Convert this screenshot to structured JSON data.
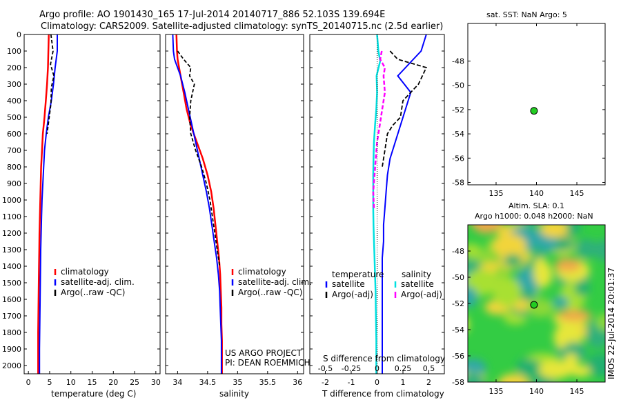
{
  "header": {
    "line1": "Argo profile: AO 1901430_165 17-Jul-2014 20140717_886 52.103S 139.694E",
    "line2": "Climatology: CARS2009. Satellite-adjusted climatology: synTS_20140715.nc (2.5d earlier)"
  },
  "credits": {
    "project": "US ARGO PROJECT",
    "pi": "PI: DEAN ROEMMICH",
    "stamp": "IMOS 22-Jul-2014 20:01:37"
  },
  "colors": {
    "climatology": "#ff0000",
    "satellite": "#0000ff",
    "argo": "#000000",
    "salinity_sat": "#00e0e0",
    "salinity_argo": "#ff00ff",
    "dot": "#22cc22"
  },
  "chart_data": [
    {
      "id": "temperature",
      "type": "line",
      "xlabel": "temperature (deg C)",
      "xlim": [
        -1,
        31
      ],
      "ylim": [
        2050,
        0
      ],
      "xticks": [
        "0",
        "5",
        "10",
        "15",
        "20",
        "25",
        "30"
      ],
      "yticks": [
        "0",
        "100",
        "200",
        "300",
        "400",
        "500",
        "600",
        "700",
        "800",
        "900",
        "1000",
        "1100",
        "1200",
        "1300",
        "1400",
        "1500",
        "1600",
        "1700",
        "1800",
        "1900",
        "2000"
      ],
      "legend": [
        "climatology",
        "satellite-adj. clim.",
        "Argo(..raw -QC)"
      ],
      "series": [
        {
          "name": "climatology",
          "x": [
            4.8,
            4.7,
            4.6,
            4.4,
            4.1,
            3.8,
            3.4,
            3.2,
            3.0,
            2.9,
            2.8,
            2.7,
            2.6,
            2.55,
            2.5,
            2.45,
            2.4,
            2.35,
            2.3,
            2.3,
            2.3
          ],
          "y": [
            0,
            100,
            200,
            300,
            400,
            500,
            600,
            700,
            800,
            900,
            1000,
            1100,
            1200,
            1300,
            1400,
            1500,
            1600,
            1700,
            1800,
            1900,
            2050
          ]
        },
        {
          "name": "satellite-adj. clim.",
          "x": [
            6.8,
            6.8,
            6.3,
            5.9,
            5.4,
            4.7,
            4.2,
            3.8,
            3.6,
            3.4,
            3.2,
            3.1,
            3.0,
            2.9,
            2.85,
            2.8,
            2.75,
            2.7,
            2.65,
            2.6,
            2.6
          ],
          "y": [
            0,
            100,
            200,
            300,
            400,
            500,
            600,
            700,
            800,
            900,
            1000,
            1100,
            1200,
            1300,
            1400,
            1500,
            1600,
            1700,
            1800,
            1900,
            2050
          ]
        },
        {
          "name": "Argo(..raw -QC)",
          "x": [
            5.3,
            5.8,
            5.2,
            6.0,
            5.4,
            5.3,
            4.8,
            4.4
          ],
          "y": [
            0,
            100,
            180,
            250,
            320,
            420,
            520,
            600
          ]
        }
      ]
    },
    {
      "id": "salinity",
      "type": "line",
      "xlabel": "salinity",
      "xlim": [
        33.8,
        36.1
      ],
      "ylim": [
        2050,
        0
      ],
      "xticks": [
        "34",
        "34.5",
        "35",
        "35.5",
        "36"
      ],
      "legend": [
        "climatology",
        "satellite-adj. clim.",
        "Argo(..raw -QC)"
      ],
      "series": [
        {
          "name": "climatology",
          "x": [
            33.98,
            33.99,
            34.0,
            34.05,
            34.1,
            34.15,
            34.22,
            34.32,
            34.42,
            34.5,
            34.56,
            34.6,
            34.63,
            34.66,
            34.69,
            34.71,
            34.72,
            34.73,
            34.73,
            34.74,
            34.74
          ],
          "y": [
            0,
            100,
            150,
            250,
            350,
            450,
            550,
            650,
            750,
            850,
            950,
            1050,
            1150,
            1250,
            1350,
            1450,
            1550,
            1650,
            1750,
            1850,
            2050
          ]
        },
        {
          "name": "satellite-adj. clim.",
          "x": [
            33.92,
            33.93,
            33.95,
            34.05,
            34.12,
            34.18,
            34.24,
            34.3,
            34.36,
            34.42,
            34.48,
            34.53,
            34.57,
            34.61,
            34.65,
            34.68,
            34.7,
            34.71,
            34.72,
            34.73,
            34.73
          ],
          "y": [
            0,
            100,
            150,
            250,
            350,
            450,
            550,
            650,
            750,
            850,
            950,
            1050,
            1150,
            1250,
            1350,
            1450,
            1550,
            1650,
            1750,
            1850,
            2050
          ]
        },
        {
          "name": "Argo(..raw -QC)",
          "x": [
            34.0,
            34.1,
            34.22,
            34.2,
            34.28,
            34.22,
            34.2,
            34.22,
            34.3,
            34.4,
            34.48,
            34.54,
            34.58,
            34.62,
            34.66,
            34.7
          ],
          "y": [
            100,
            150,
            200,
            250,
            300,
            400,
            500,
            600,
            700,
            800,
            900,
            1000,
            1100,
            1200,
            1300,
            1400
          ]
        }
      ]
    },
    {
      "id": "differences",
      "type": "line",
      "xlabel_top": "S difference from climatology",
      "xlabel": "T difference from climatology",
      "xlim": [
        -2.6,
        2.6
      ],
      "ylim": [
        2050,
        0
      ],
      "xticks": [
        "-2",
        "-1",
        "0",
        "1",
        "2"
      ],
      "xticks_top": [
        "-0.5",
        "-0.25",
        "0",
        "0.25",
        "0.5"
      ],
      "legend_groups": [
        "temperature",
        "salinity"
      ],
      "legend": [
        "satellite",
        "Argo(-adj)",
        "satellite",
        "Argo(-adj)"
      ],
      "series": [
        {
          "name": "satellite",
          "x": [
            1.9,
            1.7,
            1.4,
            0.8,
            1.3,
            1.1,
            0.9,
            0.7,
            0.5,
            0.4,
            0.35,
            0.3,
            0.25,
            0.25,
            0.2,
            0.2,
            0.2,
            0.2,
            0.2,
            0.2,
            0.2
          ],
          "y": [
            0,
            100,
            150,
            250,
            350,
            450,
            550,
            650,
            750,
            850,
            950,
            1050,
            1150,
            1250,
            1350,
            1450,
            1550,
            1650,
            1750,
            1850,
            2050
          ]
        },
        {
          "name": "Argo(-adj)",
          "x": [
            0.5,
            0.8,
            1.9,
            1.6,
            1.0,
            0.9,
            0.6,
            0.4,
            0.3,
            0.2
          ],
          "y": [
            100,
            150,
            200,
            300,
            400,
            500,
            550,
            600,
            700,
            800
          ]
        },
        {
          "name": "satellite",
          "x": [
            0.0,
            0.05,
            0.12,
            -0.02,
            0.0,
            -0.03,
            -0.08,
            -0.12,
            -0.14,
            -0.15,
            -0.15,
            -0.15,
            -0.14,
            -0.12,
            -0.1,
            -0.08,
            -0.06,
            -0.05,
            -0.04,
            -0.03,
            -0.03
          ],
          "y": [
            0,
            100,
            160,
            250,
            350,
            450,
            550,
            650,
            750,
            850,
            950,
            1050,
            1150,
            1250,
            1350,
            1450,
            1550,
            1650,
            1750,
            1850,
            2050
          ]
        },
        {
          "name": "Argo(-adj)",
          "x": [
            0.18,
            0.12,
            0.3,
            0.25,
            0.3,
            0.2,
            0.1,
            0.0,
            -0.05,
            -0.1,
            -0.15,
            -0.12
          ],
          "y": [
            100,
            150,
            200,
            250,
            350,
            450,
            550,
            650,
            750,
            850,
            950,
            1050
          ]
        }
      ]
    },
    {
      "id": "sst_map",
      "type": "scatter",
      "title": "sat. SST: NaN Argo: 5",
      "xlim": [
        131.5,
        148.5
      ],
      "ylim": [
        -58.2,
        -44.9
      ],
      "xticks": [
        "135",
        "140",
        "145"
      ],
      "yticks": [
        "-48",
        "-50",
        "-52",
        "-54",
        "-56",
        "-58"
      ],
      "points": [
        {
          "lon": 139.694,
          "lat": -52.103
        }
      ]
    },
    {
      "id": "sla_map",
      "type": "heatmap",
      "title_line1": "Altim. SLA: 0.1",
      "title_line2": "Argo h1000: 0.048 h2000: NaN",
      "xlim": [
        131.5,
        148.5
      ],
      "ylim": [
        -58,
        -46
      ],
      "xticks": [
        "135",
        "140",
        "145"
      ],
      "yticks": [
        "-48",
        "-50",
        "-52",
        "-54",
        "-56",
        "-58"
      ],
      "points": [
        {
          "lon": 139.694,
          "lat": -52.103
        }
      ]
    }
  ]
}
